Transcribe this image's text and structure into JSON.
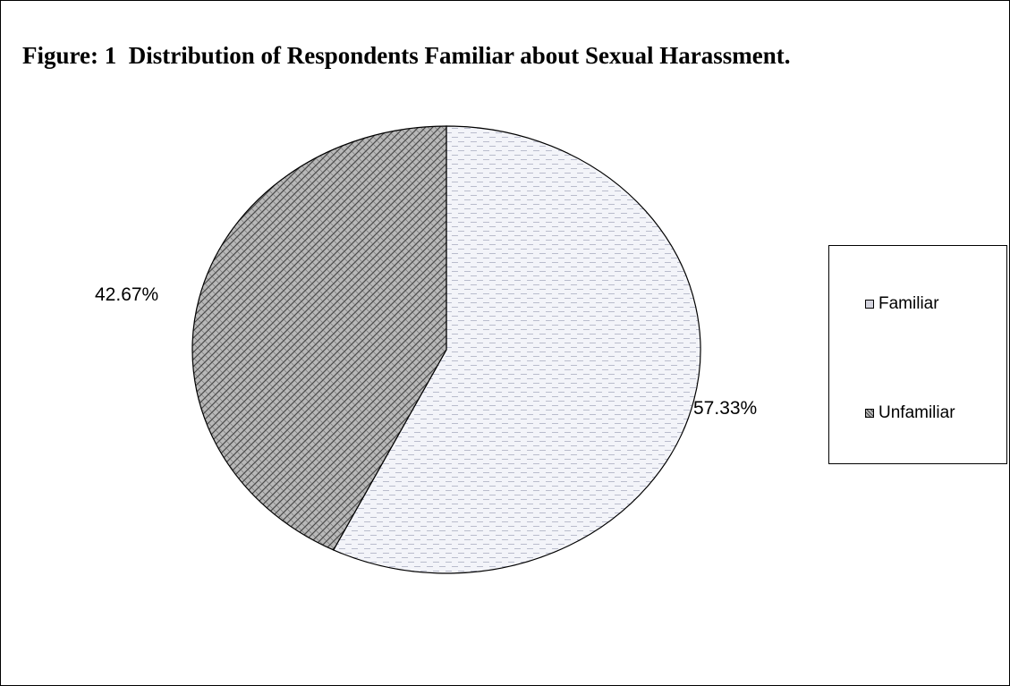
{
  "chart_data": {
    "type": "pie",
    "title": "Figure: 1  Distribution of Respondents Familiar about Sexual Harassment.",
    "categories": [
      "Familiar",
      "Unfamiliar"
    ],
    "values": [
      57.33,
      42.67
    ],
    "labels": [
      "57.33%",
      "42.67%"
    ],
    "legend": {
      "position": "right",
      "entries": [
        "Familiar",
        "Unfamiliar"
      ]
    },
    "colors": [
      "#eceef5",
      "#9a9a9a"
    ]
  }
}
